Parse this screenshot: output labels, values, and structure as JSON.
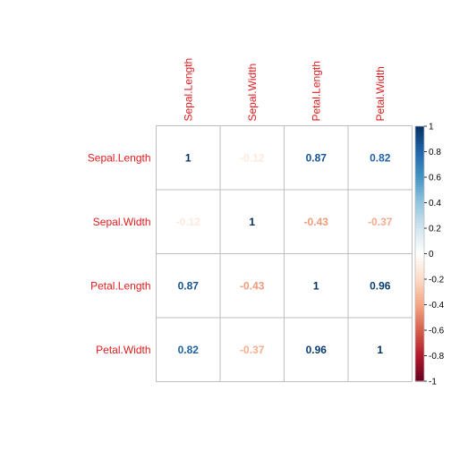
{
  "chart_data": {
    "type": "heatmap",
    "variables": [
      "Sepal.Length",
      "Sepal.Width",
      "Petal.Length",
      "Petal.Width"
    ],
    "matrix": [
      [
        1,
        -0.12,
        0.87,
        0.82
      ],
      [
        -0.12,
        1,
        -0.43,
        -0.37
      ],
      [
        0.87,
        -0.43,
        1,
        0.96
      ],
      [
        0.82,
        -0.37,
        0.96,
        1
      ]
    ],
    "labels": [
      [
        "1",
        "-0.12",
        "0.87",
        "0.82"
      ],
      [
        "-0.12",
        "1",
        "-0.43",
        "-0.37"
      ],
      [
        "0.87",
        "-0.43",
        "1",
        "0.96"
      ],
      [
        "0.82",
        "-0.37",
        "0.96",
        "1"
      ]
    ],
    "color_range": [
      -1,
      1
    ],
    "legend": {
      "placement": "right",
      "ticks": [
        "1",
        "0.8",
        "0.6",
        "0.4",
        "0.2",
        "0",
        "-0.2",
        "-0.4",
        "-0.6",
        "-0.8",
        "-1"
      ],
      "tick_values": [
        1,
        0.8,
        0.6,
        0.4,
        0.2,
        0,
        -0.2,
        -0.4,
        -0.6,
        -0.8,
        -1
      ]
    },
    "label_color": "#e41a1c",
    "grid_color": "#bebebe",
    "palette": [
      "#67001F",
      "#B2182B",
      "#D6604D",
      "#F4A582",
      "#FDDBC7",
      "#FFFFFF",
      "#D1E5F0",
      "#92C5DE",
      "#4393C3",
      "#2166AC",
      "#053061"
    ]
  }
}
